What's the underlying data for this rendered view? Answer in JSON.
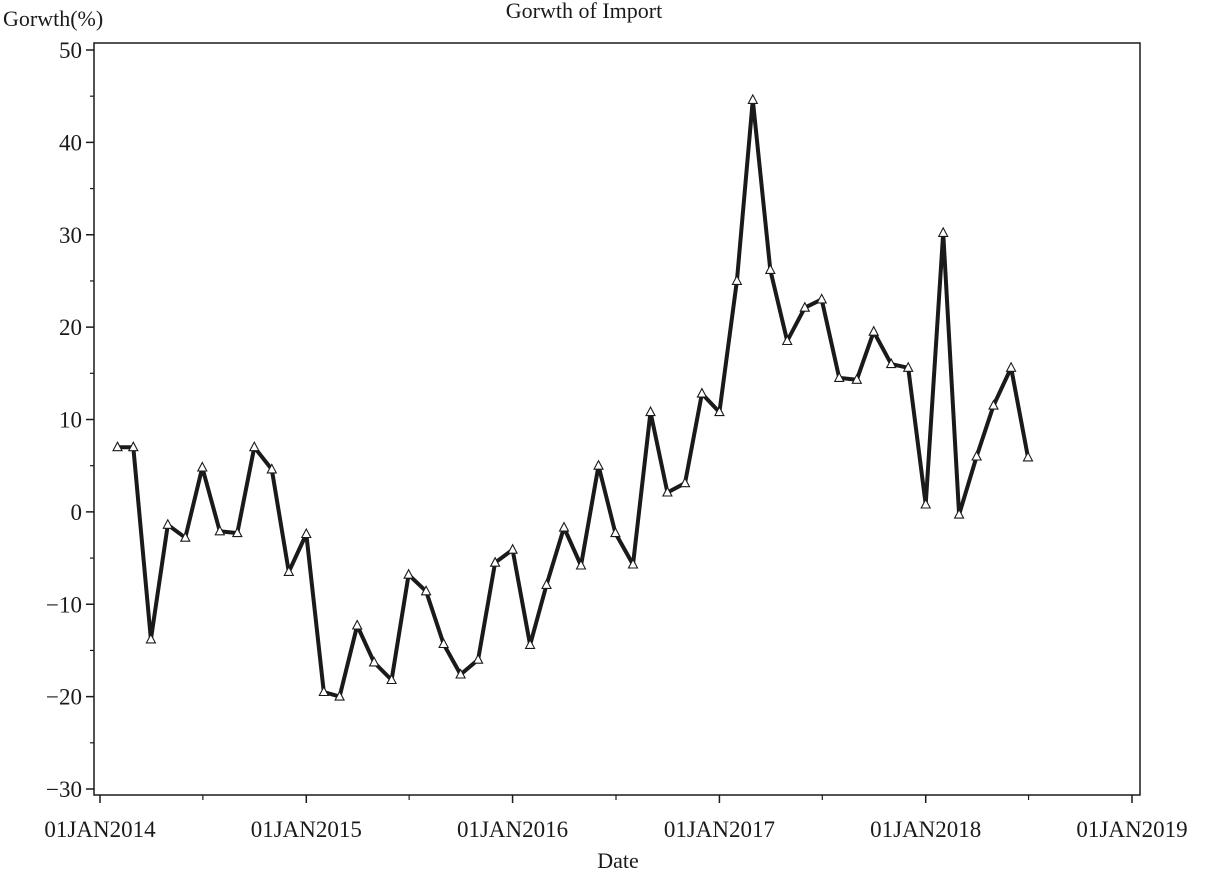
{
  "chart_data": {
    "type": "line",
    "title": "Gorwth of Import",
    "xlabel": "Date",
    "ylabel": "Gorwth(%)",
    "ylim": [
      -30,
      50
    ],
    "yticks": [
      -30,
      -20,
      -10,
      0,
      10,
      20,
      30,
      40,
      50
    ],
    "ytick_labels": [
      "−30",
      "−20",
      "−10",
      "0",
      "10",
      "20",
      "30",
      "40",
      "50"
    ],
    "xlim": [
      "2014-01-01",
      "2019-01-01"
    ],
    "xticks": [
      "2014-01-01",
      "2015-01-01",
      "2016-01-01",
      "2017-01-01",
      "2018-01-01",
      "2019-01-01"
    ],
    "xtick_labels": [
      "01JAN2014",
      "01JAN2015",
      "01JAN2016",
      "01JAN2017",
      "01JAN2018",
      "01JAN2019"
    ],
    "grid": false,
    "marker": "triangle",
    "line_color": "#1a1a1a",
    "series": [
      {
        "x": [
          "2014-02-01",
          "2014-03-01",
          "2014-04-01",
          "2014-05-01",
          "2014-06-01",
          "2014-07-01",
          "2014-08-01",
          "2014-09-01",
          "2014-10-01",
          "2014-11-01",
          "2014-12-01",
          "2015-01-01",
          "2015-02-01",
          "2015-03-01",
          "2015-04-01",
          "2015-05-01",
          "2015-06-01",
          "2015-07-01",
          "2015-08-01",
          "2015-09-01",
          "2015-10-01",
          "2015-11-01",
          "2015-12-01",
          "2016-01-01",
          "2016-02-01",
          "2016-03-01",
          "2016-04-01",
          "2016-05-01",
          "2016-06-01",
          "2016-07-01",
          "2016-08-01",
          "2016-09-01",
          "2016-10-01",
          "2016-11-01",
          "2016-12-01",
          "2017-01-01",
          "2017-02-01",
          "2017-03-01",
          "2017-04-01",
          "2017-05-01",
          "2017-06-01",
          "2017-07-01",
          "2017-08-01",
          "2017-09-01",
          "2017-10-01",
          "2017-11-01",
          "2017-12-01",
          "2018-01-01",
          "2018-02-01",
          "2018-03-01",
          "2018-04-01",
          "2018-05-01",
          "2018-06-01",
          "2018-07-01"
        ],
        "y": [
          7.0,
          7.0,
          -13.8,
          -1.4,
          -2.8,
          4.8,
          -2.1,
          -2.3,
          7.0,
          4.6,
          -6.5,
          -2.4,
          -19.5,
          -20.0,
          -12.3,
          -16.3,
          -18.2,
          -6.8,
          -8.6,
          -14.3,
          -17.6,
          -16.0,
          -5.5,
          -4.1,
          -14.4,
          -7.9,
          -1.7,
          -5.8,
          5.0,
          -2.3,
          -5.7,
          10.8,
          2.1,
          3.1,
          12.8,
          10.8,
          25.0,
          44.6,
          26.2,
          18.5,
          22.1,
          23.0,
          14.5,
          14.3,
          19.5,
          16.0,
          15.6,
          0.8,
          30.2,
          -0.3,
          6.0,
          11.5,
          15.6,
          5.9
        ]
      }
    ]
  }
}
